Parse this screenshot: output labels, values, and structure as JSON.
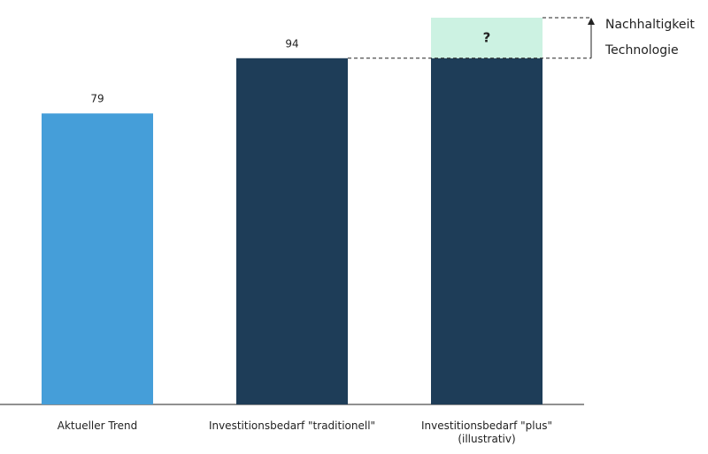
{
  "chart_data": {
    "type": "stacked-bar",
    "categories": [
      "Aktueller Trend",
      "Investitionsbedarf \"traditionell\"",
      "Investitionsbedarf \"plus\"\n(illustrativ)"
    ],
    "series": [
      {
        "values": [
          79,
          94,
          94
        ],
        "colors": [
          "#459ed9",
          "#1e3d58",
          "#1e3d58"
        ],
        "data_labels": [
          true,
          true,
          false
        ]
      },
      {
        "values": [
          null,
          null,
          11
        ],
        "color": "#ccf2e2",
        "value_labels": [
          null,
          null,
          "?"
        ],
        "label_color": "#2a8a6e"
      }
    ],
    "ylim": [
      0,
      105
    ],
    "annotations": [
      "Nachhaltigkeit",
      "Technologie"
    ]
  }
}
